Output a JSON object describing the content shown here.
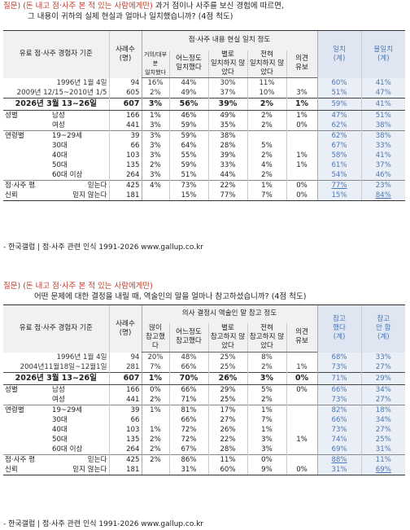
{
  "s1": {
    "q_tag": "질문)",
    "q_cond": "(돈 내고 점·사주 본 적 있는 사람에게만)",
    "q_line1_rest": " 과거 점이나 사주를 보신 경험에 따르면,",
    "q_line2": "그 내용이 귀하의 실제 현실과 얼마나 일치했습니까? (4점 척도)",
    "h_base": "유료 점·사주 경험자 기준",
    "h_n": "사례수\n(명)",
    "h_group": "점·사주 내용 현실 일치 정도",
    "h_cols": [
      "거의/대부분\n일치했다",
      "어느정도\n일치했다",
      "별로\n일치하지 않았다",
      "전혀\n일치하지 않았다",
      "의견\n유보"
    ],
    "h_agg": [
      "일치\n(계)",
      "불일치\n(계)"
    ],
    "hist": [
      {
        "label": "1996년 1월 4일",
        "n": "94",
        "v": [
          "16%",
          "44%",
          "30%",
          "11%",
          ""
        ],
        "a": [
          "60%",
          "41%"
        ]
      },
      {
        "label": "2009년 12/15~2010년 1/5",
        "n": "605",
        "v": [
          "2%",
          "49%",
          "37%",
          "10%",
          "3%"
        ],
        "a": [
          "51%",
          "47%"
        ]
      }
    ],
    "total": {
      "label": "2026년 3월 13~26일",
      "n": "607",
      "v": [
        "3%",
        "56%",
        "39%",
        "2%",
        "1%"
      ],
      "a": [
        "59%",
        "41%"
      ]
    },
    "groups": [
      {
        "cat": "성별",
        "rows": [
          {
            "label": "남성",
            "n": "166",
            "v": [
              "1%",
              "46%",
              "49%",
              "2%",
              "1%"
            ],
            "a": [
              "47%",
              "51%"
            ]
          },
          {
            "label": "여성",
            "n": "441",
            "v": [
              "3%",
              "59%",
              "35%",
              "2%",
              "0%"
            ],
            "a": [
              "62%",
              "38%"
            ]
          }
        ]
      },
      {
        "cat": "연령별",
        "rows": [
          {
            "label": "19~29세",
            "n": "39",
            "v": [
              "3%",
              "59%",
              "38%",
              "",
              ""
            ],
            "a": [
              "62%",
              "38%"
            ]
          },
          {
            "label": "30대",
            "n": "66",
            "v": [
              "3%",
              "64%",
              "28%",
              "5%",
              ""
            ],
            "a": [
              "67%",
              "33%"
            ]
          },
          {
            "label": "40대",
            "n": "103",
            "v": [
              "3%",
              "55%",
              "39%",
              "2%",
              "1%"
            ],
            "a": [
              "58%",
              "41%"
            ]
          },
          {
            "label": "50대",
            "n": "135",
            "v": [
              "2%",
              "59%",
              "33%",
              "4%",
              "1%"
            ],
            "a": [
              "61%",
              "37%"
            ]
          },
          {
            "label": "60대 이상",
            "n": "264",
            "v": [
              "3%",
              "51%",
              "44%",
              "2%",
              ""
            ],
            "a": [
              "54%",
              "46%"
            ]
          }
        ]
      }
    ],
    "belief": [
      {
        "cat": "점·사주 평소",
        "label": "믿는다",
        "n": "425",
        "v": [
          "4%",
          "73%",
          "22%",
          "1%",
          "0%"
        ],
        "a": [
          "77%",
          "23%"
        ],
        "hl": 0
      },
      {
        "cat": "신뢰",
        "label": "믿지 않는다",
        "n": "181",
        "v": [
          "",
          "15%",
          "77%",
          "7%",
          "0%"
        ],
        "a": [
          "15%",
          "84%"
        ],
        "hl": 1
      }
    ],
    "source": "- 한국갤럽 | 점·사주 관련 인식 1991-2026 www.gallup.co.kr"
  },
  "s2": {
    "q_tag": "질문)",
    "q_cond": "(돈 내고 점·사주 본 적 있는 사람에게만)",
    "q_line2": "어떤 문제에 대한 결정을 내릴 때, 역술인의 말을 얼마나 참고하셨습니까? (4점 척도)",
    "h_base": "유료 점·사주 경험자 기준",
    "h_n": "사례수\n(명)",
    "h_group": "의사 결정시 역술인 말 참고 정도",
    "h_cols": [
      "많이\n참고했다",
      "어느정도\n참고했다",
      "별로\n참고하지 않았다",
      "전혀\n참고하지 않았다",
      "의견\n유보"
    ],
    "h_agg": [
      "참고\n했다\n(계)",
      "참고\n안 함\n(계)"
    ],
    "hist": [
      {
        "label": "1996년 1월 4일",
        "n": "94",
        "v": [
          "20%",
          "48%",
          "25%",
          "8%",
          ""
        ],
        "a": [
          "68%",
          "33%"
        ]
      },
      {
        "label": "2004년11월18일~12월1일",
        "n": "281",
        "v": [
          "7%",
          "66%",
          "25%",
          "2%",
          "1%"
        ],
        "a": [
          "73%",
          "27%"
        ]
      }
    ],
    "total": {
      "label": "2026년 3월 13~26일",
      "n": "607",
      "v": [
        "1%",
        "70%",
        "26%",
        "3%",
        "0%"
      ],
      "a": [
        "71%",
        "29%"
      ]
    },
    "groups": [
      {
        "cat": "성별",
        "rows": [
          {
            "label": "남성",
            "n": "166",
            "v": [
              "0%",
              "66%",
              "29%",
              "5%",
              "0%"
            ],
            "a": [
              "66%",
              "34%"
            ]
          },
          {
            "label": "여성",
            "n": "441",
            "v": [
              "2%",
              "71%",
              "25%",
              "2%",
              ""
            ],
            "a": [
              "73%",
              "27%"
            ]
          }
        ]
      },
      {
        "cat": "연령별",
        "rows": [
          {
            "label": "19~29세",
            "n": "39",
            "v": [
              "1%",
              "81%",
              "17%",
              "1%",
              ""
            ],
            "a": [
              "82%",
              "18%"
            ]
          },
          {
            "label": "30대",
            "n": "66",
            "v": [
              "",
              "66%",
              "27%",
              "7%",
              ""
            ],
            "a": [
              "66%",
              "34%"
            ]
          },
          {
            "label": "40대",
            "n": "103",
            "v": [
              "1%",
              "72%",
              "26%",
              "1%",
              ""
            ],
            "a": [
              "73%",
              "27%"
            ]
          },
          {
            "label": "50대",
            "n": "135",
            "v": [
              "2%",
              "72%",
              "22%",
              "3%",
              "1%"
            ],
            "a": [
              "74%",
              "25%"
            ]
          },
          {
            "label": "60대 이상",
            "n": "264",
            "v": [
              "2%",
              "67%",
              "28%",
              "3%",
              ""
            ],
            "a": [
              "69%",
              "31%"
            ]
          }
        ]
      }
    ],
    "belief": [
      {
        "cat": "점·사주 평소",
        "label": "믿는다",
        "n": "425",
        "v": [
          "2%",
          "86%",
          "11%",
          "0%",
          ""
        ],
        "a": [
          "88%",
          "11%"
        ],
        "hl": 0
      },
      {
        "cat": "신뢰",
        "label": "믿지 않는다",
        "n": "181",
        "v": [
          "",
          "31%",
          "60%",
          "9%",
          "0%"
        ],
        "a": [
          "31%",
          "69%"
        ],
        "hl": 1
      }
    ],
    "source": "- 한국갤럽 | 점·사주 관련 인식 1991-2026 www.gallup.co.kr"
  }
}
